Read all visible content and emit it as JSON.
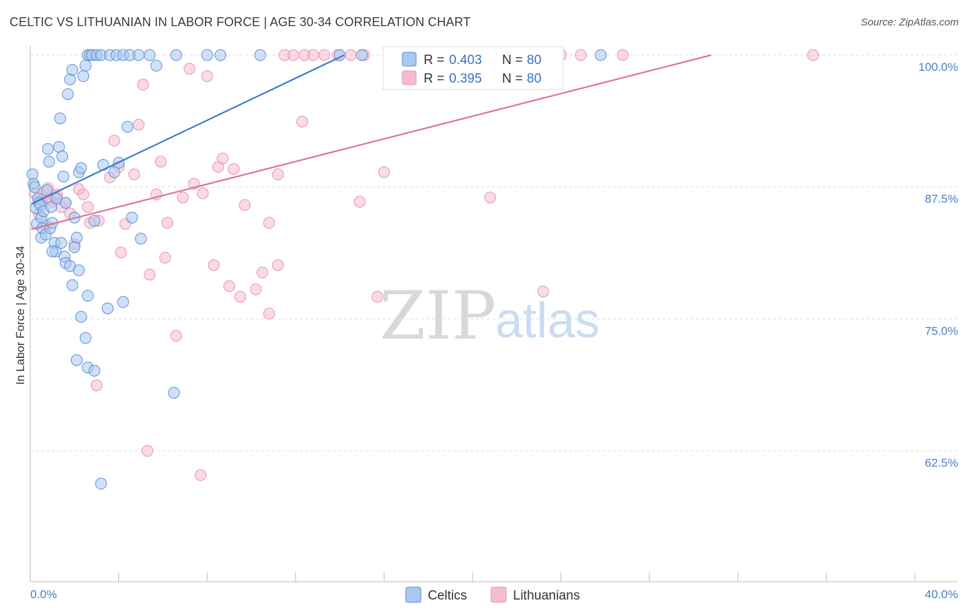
{
  "header": {
    "title": "CELTIC VS LITHUANIAN IN LABOR FORCE | AGE 30-34 CORRELATION CHART",
    "source": "Source: ZipAtlas.com"
  },
  "watermark": {
    "zip": "ZIP",
    "atlas": "atlas"
  },
  "colors": {
    "celtic_fill": "#a9c8f0",
    "celtic_stroke": "#5b8fd6",
    "celtic_line": "#3b78d0",
    "lith_fill": "#f6bccd",
    "lith_stroke": "#e793ad",
    "lith_line": "#e0709a",
    "tick_text": "#4a7cc9"
  },
  "legend": {
    "rows": [
      {
        "r_label": "R =",
        "r_value": "0.403",
        "n_label": "N =",
        "n_value": "80"
      },
      {
        "r_label": "R =",
        "r_value": "0.395",
        "n_label": "N =",
        "n_value": "80"
      }
    ]
  },
  "bottom_legend": {
    "celtics": "Celtics",
    "lithuanians": "Lithuanians"
  },
  "chart_data": {
    "type": "scatter",
    "title": "CELTIC VS LITHUANIAN IN LABOR FORCE | AGE 30-34 CORRELATION CHART",
    "xlabel": "",
    "ylabel": "In Labor Force | Age 30-34",
    "xlim": [
      0,
      40
    ],
    "ylim": [
      52,
      100.5
    ],
    "x_tick_labels": [
      "0.0%",
      "40.0%"
    ],
    "y_ticks": [
      {
        "value": 100,
        "label": "100.0%"
      },
      {
        "value": 87.5,
        "label": "87.5%"
      },
      {
        "value": 75,
        "label": "75.0%"
      },
      {
        "value": 62.5,
        "label": "62.5%"
      }
    ],
    "grid": true,
    "legend_placement": "top-center",
    "series": [
      {
        "name": "Celtics",
        "trend": {
          "x": [
            0.05,
            14.2
          ],
          "y": [
            85.9,
            100
          ]
        },
        "points": [
          [
            0.1,
            88.7
          ],
          [
            0.15,
            87.8
          ],
          [
            0.2,
            87.5
          ],
          [
            0.25,
            85.5
          ],
          [
            0.3,
            84.0
          ],
          [
            0.35,
            86.4
          ],
          [
            0.4,
            86.0
          ],
          [
            0.45,
            85.8
          ],
          [
            0.5,
            84.6
          ],
          [
            0.5,
            82.7
          ],
          [
            0.55,
            83.6
          ],
          [
            0.6,
            85.2
          ],
          [
            0.7,
            83.0
          ],
          [
            0.75,
            87.2
          ],
          [
            0.8,
            91.1
          ],
          [
            0.85,
            89.9
          ],
          [
            0.9,
            83.6
          ],
          [
            0.95,
            85.6
          ],
          [
            1.0,
            84.1
          ],
          [
            1.1,
            82.2
          ],
          [
            1.15,
            81.4
          ],
          [
            1.2,
            86.4
          ],
          [
            1.3,
            91.3
          ],
          [
            1.35,
            94.0
          ],
          [
            1.45,
            90.4
          ],
          [
            1.5,
            88.5
          ],
          [
            1.55,
            80.9
          ],
          [
            1.6,
            86.0
          ],
          [
            1.7,
            96.3
          ],
          [
            1.8,
            97.7
          ],
          [
            1.9,
            98.6
          ],
          [
            2.0,
            84.6
          ],
          [
            2.1,
            82.7
          ],
          [
            2.2,
            88.9
          ],
          [
            2.3,
            89.3
          ],
          [
            2.4,
            98.0
          ],
          [
            2.5,
            99.0
          ],
          [
            2.6,
            100.0
          ],
          [
            2.7,
            100.0
          ],
          [
            2.8,
            100.0
          ],
          [
            3.0,
            100.0
          ],
          [
            3.2,
            100.0
          ],
          [
            3.6,
            100.0
          ],
          [
            3.9,
            100.0
          ],
          [
            4.2,
            100.0
          ],
          [
            4.5,
            100.0
          ],
          [
            4.9,
            100.0
          ],
          [
            5.4,
            100.0
          ],
          [
            5.7,
            99.0
          ],
          [
            6.6,
            100.0
          ],
          [
            8.0,
            100.0
          ],
          [
            8.6,
            100.0
          ],
          [
            10.4,
            100.0
          ],
          [
            14.0,
            100.0
          ],
          [
            15.0,
            100.0
          ],
          [
            25.8,
            100.0
          ],
          [
            3.8,
            88.9
          ],
          [
            4.0,
            89.8
          ],
          [
            4.4,
            93.2
          ],
          [
            3.3,
            89.6
          ],
          [
            2.9,
            84.3
          ],
          [
            2.0,
            81.8
          ],
          [
            1.4,
            82.2
          ],
          [
            1.0,
            81.4
          ],
          [
            1.6,
            80.3
          ],
          [
            1.8,
            80.0
          ],
          [
            2.2,
            79.6
          ],
          [
            1.9,
            78.2
          ],
          [
            2.6,
            77.2
          ],
          [
            2.3,
            75.2
          ],
          [
            2.5,
            73.2
          ],
          [
            2.1,
            71.1
          ],
          [
            2.6,
            70.4
          ],
          [
            2.9,
            70.1
          ],
          [
            3.5,
            76.0
          ],
          [
            4.2,
            76.6
          ],
          [
            4.6,
            84.6
          ],
          [
            5.0,
            82.6
          ],
          [
            6.5,
            68.0
          ],
          [
            3.2,
            59.4
          ]
        ]
      },
      {
        "name": "Lithuanians",
        "trend": {
          "x": [
            0.05,
            30.8
          ],
          "y": [
            83.5,
            100
          ]
        },
        "points": [
          [
            0.2,
            86.9
          ],
          [
            0.4,
            84.9
          ],
          [
            0.5,
            86.3
          ],
          [
            0.6,
            87.0
          ],
          [
            0.7,
            83.9
          ],
          [
            0.8,
            87.4
          ],
          [
            0.9,
            86.4
          ],
          [
            1.0,
            86.1
          ],
          [
            1.1,
            86.6
          ],
          [
            1.2,
            86.8
          ],
          [
            1.4,
            85.6
          ],
          [
            1.6,
            86.0
          ],
          [
            1.8,
            85.0
          ],
          [
            2.0,
            82.1
          ],
          [
            2.2,
            87.3
          ],
          [
            2.4,
            86.8
          ],
          [
            2.7,
            84.1
          ],
          [
            3.1,
            84.3
          ],
          [
            3.6,
            88.4
          ],
          [
            3.8,
            91.9
          ],
          [
            4.0,
            89.4
          ],
          [
            4.3,
            84.0
          ],
          [
            4.7,
            88.7
          ],
          [
            4.9,
            93.4
          ],
          [
            5.1,
            97.2
          ],
          [
            5.4,
            79.2
          ],
          [
            5.7,
            86.8
          ],
          [
            5.9,
            89.9
          ],
          [
            6.2,
            84.1
          ],
          [
            6.6,
            73.4
          ],
          [
            6.9,
            86.5
          ],
          [
            7.2,
            98.7
          ],
          [
            7.4,
            87.8
          ],
          [
            7.7,
            60.2
          ],
          [
            8.0,
            98.0
          ],
          [
            8.3,
            80.1
          ],
          [
            8.5,
            89.4
          ],
          [
            8.7,
            90.2
          ],
          [
            9.0,
            78.1
          ],
          [
            9.2,
            89.2
          ],
          [
            9.7,
            85.8
          ],
          [
            10.2,
            77.8
          ],
          [
            10.5,
            79.4
          ],
          [
            10.8,
            84.1
          ],
          [
            11.2,
            88.7
          ],
          [
            11.5,
            100.0
          ],
          [
            11.9,
            100.0
          ],
          [
            12.4,
            100.0
          ],
          [
            12.8,
            100.0
          ],
          [
            13.3,
            100.0
          ],
          [
            13.9,
            100.0
          ],
          [
            14.5,
            100.0
          ],
          [
            15.1,
            100.0
          ],
          [
            15.7,
            77.1
          ],
          [
            16.3,
            100.0
          ],
          [
            17.0,
            100.0
          ],
          [
            17.6,
            100.0
          ],
          [
            18.4,
            100.0
          ],
          [
            19.3,
            100.0
          ],
          [
            20.1,
            100.0
          ],
          [
            20.8,
            86.5
          ],
          [
            21.5,
            100.0
          ],
          [
            22.3,
            100.0
          ],
          [
            23.2,
            77.6
          ],
          [
            24.0,
            100.0
          ],
          [
            24.9,
            100.0
          ],
          [
            26.8,
            100.0
          ],
          [
            35.4,
            100.0
          ],
          [
            16.0,
            88.9
          ],
          [
            14.9,
            86.1
          ],
          [
            12.3,
            93.7
          ],
          [
            11.2,
            80.1
          ],
          [
            10.8,
            75.5
          ],
          [
            9.5,
            77.1
          ],
          [
            7.8,
            86.9
          ],
          [
            6.1,
            80.8
          ],
          [
            3.0,
            68.7
          ],
          [
            5.3,
            62.5
          ],
          [
            4.1,
            81.3
          ],
          [
            2.6,
            85.6
          ]
        ]
      }
    ]
  }
}
